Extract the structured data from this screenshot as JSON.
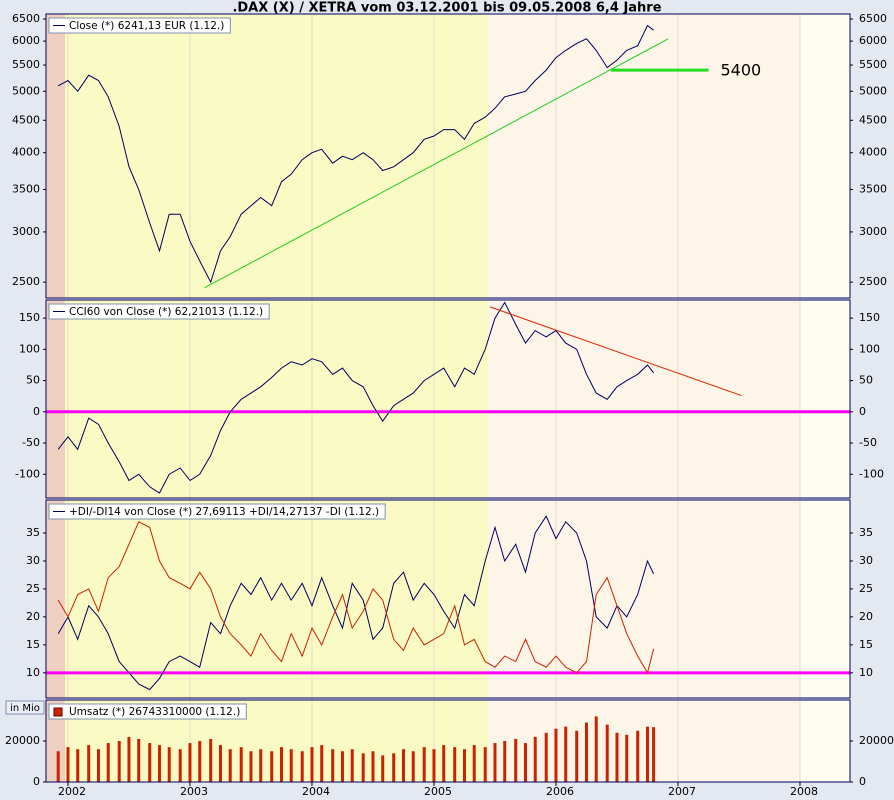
{
  "chart_data": [
    {
      "type": "line",
      "title": ".DAX (X) / XETRA vom 03.12.2001 bis 09.05.2008 6,4 Jahre",
      "legend": "Close (*) 6241,13 EUR (1.12.)",
      "log_scale": true,
      "ylim": [
        2360,
        6620
      ],
      "yticks": [
        2500,
        3000,
        3500,
        4000,
        4500,
        5000,
        5500,
        6000,
        6500
      ],
      "x": [
        2001.92,
        2002.0,
        2002.08,
        2002.17,
        2002.25,
        2002.33,
        2002.42,
        2002.5,
        2002.58,
        2002.67,
        2002.75,
        2002.83,
        2002.92,
        2003.0,
        2003.08,
        2003.17,
        2003.25,
        2003.33,
        2003.42,
        2003.5,
        2003.58,
        2003.67,
        2003.75,
        2003.83,
        2003.92,
        2004.0,
        2004.08,
        2004.17,
        2004.25,
        2004.33,
        2004.42,
        2004.5,
        2004.58,
        2004.67,
        2004.75,
        2004.83,
        2004.92,
        2005.0,
        2005.08,
        2005.17,
        2005.25,
        2005.33,
        2005.42,
        2005.5,
        2005.58,
        2005.67,
        2005.75,
        2005.83,
        2005.92,
        2006.0,
        2006.08,
        2006.17,
        2006.25,
        2006.33,
        2006.42,
        2006.5,
        2006.58,
        2006.67,
        2006.75,
        2006.8
      ],
      "series": [
        {
          "color": "#000060",
          "values": [
            5100,
            5200,
            5000,
            5300,
            5200,
            4900,
            4400,
            3800,
            3500,
            3100,
            2800,
            3200,
            3200,
            2900,
            2700,
            2500,
            2800,
            2950,
            3200,
            3300,
            3400,
            3300,
            3600,
            3700,
            3900,
            4000,
            4050,
            3850,
            3950,
            3900,
            4000,
            3900,
            3750,
            3800,
            3900,
            4000,
            4200,
            4250,
            4350,
            4350,
            4200,
            4450,
            4550,
            4700,
            4900,
            4950,
            5000,
            5200,
            5400,
            5650,
            5800,
            5950,
            6050,
            5800,
            5450,
            5600,
            5800,
            5900,
            6350,
            6241.13
          ]
        }
      ],
      "annotations": [
        {
          "x": [
            2003.12,
            2006.92
          ],
          "values": [
            2450,
            6050
          ],
          "color": "#22cc22"
        },
        {
          "x": [
            2006.45,
            2007.25
          ],
          "values": [
            5400,
            5400
          ],
          "color": "#22dd22",
          "label": "5400"
        }
      ]
    },
    {
      "type": "line",
      "legend": "CCI60 von Close (*) 62,21013 (1.12.)",
      "ylim": [
        -138,
        179
      ],
      "yticks": [
        -100,
        -50,
        0,
        50,
        100,
        150
      ],
      "hlines": [
        {
          "value": 0,
          "color": "#ff00ff"
        }
      ],
      "x": [
        2001.92,
        2002.0,
        2002.08,
        2002.17,
        2002.25,
        2002.33,
        2002.42,
        2002.5,
        2002.58,
        2002.67,
        2002.75,
        2002.83,
        2002.92,
        2003.0,
        2003.08,
        2003.17,
        2003.25,
        2003.33,
        2003.42,
        2003.5,
        2003.58,
        2003.67,
        2003.75,
        2003.83,
        2003.92,
        2004.0,
        2004.08,
        2004.17,
        2004.25,
        2004.33,
        2004.42,
        2004.5,
        2004.58,
        2004.67,
        2004.75,
        2004.83,
        2004.92,
        2005.0,
        2005.08,
        2005.17,
        2005.25,
        2005.33,
        2005.42,
        2005.5,
        2005.58,
        2005.67,
        2005.75,
        2005.83,
        2005.92,
        2006.0,
        2006.08,
        2006.17,
        2006.25,
        2006.33,
        2006.42,
        2006.5,
        2006.58,
        2006.67,
        2006.75,
        2006.8
      ],
      "series": [
        {
          "color": "#000060",
          "values": [
            -60,
            -40,
            -60,
            -10,
            -20,
            -50,
            -80,
            -110,
            -100,
            -120,
            -130,
            -100,
            -90,
            -110,
            -100,
            -70,
            -30,
            0,
            20,
            30,
            40,
            55,
            70,
            80,
            75,
            85,
            80,
            60,
            70,
            50,
            40,
            10,
            -15,
            10,
            20,
            30,
            50,
            60,
            70,
            40,
            70,
            60,
            100,
            150,
            175,
            140,
            110,
            130,
            120,
            130,
            110,
            100,
            60,
            30,
            20,
            40,
            50,
            60,
            75,
            62.21
          ]
        }
      ],
      "annotations": [
        {
          "x": [
            2005.46,
            2007.52
          ],
          "values": [
            168,
            26
          ],
          "color": "#dd2200"
        }
      ]
    },
    {
      "type": "line",
      "legend": "+DI/-DI14 von Close (*) 27,69113 +DI/14,27137 -DI (1.12.)",
      "ylim": [
        5.5,
        40.9
      ],
      "yticks": [
        10,
        15,
        20,
        25,
        30,
        35
      ],
      "hlines": [
        {
          "value": 10,
          "color": "#ff00ff"
        }
      ],
      "x": [
        2001.92,
        2002.0,
        2002.08,
        2002.17,
        2002.25,
        2002.33,
        2002.42,
        2002.5,
        2002.58,
        2002.67,
        2002.75,
        2002.83,
        2002.92,
        2003.0,
        2003.08,
        2003.17,
        2003.25,
        2003.33,
        2003.42,
        2003.5,
        2003.58,
        2003.67,
        2003.75,
        2003.83,
        2003.92,
        2004.0,
        2004.08,
        2004.17,
        2004.25,
        2004.33,
        2004.42,
        2004.5,
        2004.58,
        2004.67,
        2004.75,
        2004.83,
        2004.92,
        2005.0,
        2005.08,
        2005.17,
        2005.25,
        2005.33,
        2005.42,
        2005.5,
        2005.58,
        2005.67,
        2005.75,
        2005.83,
        2005.92,
        2006.0,
        2006.08,
        2006.17,
        2006.25,
        2006.33,
        2006.42,
        2006.5,
        2006.58,
        2006.67,
        2006.75,
        2006.8
      ],
      "series": [
        {
          "color": "#000060",
          "values": [
            17,
            20,
            16,
            22,
            20,
            17,
            12,
            10,
            8,
            7,
            9,
            12,
            13,
            12,
            11,
            19,
            17,
            22,
            26,
            24,
            27,
            23,
            26,
            23,
            26,
            22,
            27,
            22,
            18,
            26,
            23,
            16,
            18,
            26,
            28,
            23,
            26,
            24,
            21,
            18,
            24,
            22,
            30,
            36,
            30,
            33,
            28,
            35,
            38,
            34,
            37,
            35,
            30,
            20,
            18,
            22,
            20,
            24,
            30,
            27.69
          ]
        },
        {
          "color": "#cc2200",
          "values": [
            23,
            20,
            24,
            25,
            21,
            27,
            29,
            33,
            37,
            36,
            30,
            27,
            26,
            25,
            28,
            25,
            20,
            17,
            15,
            13,
            17,
            14,
            12,
            17,
            13,
            18,
            15,
            20,
            24,
            18,
            21,
            25,
            23,
            16,
            14,
            18,
            15,
            16,
            17,
            22,
            15,
            16,
            12,
            11,
            13,
            12,
            16,
            12,
            11,
            13,
            11,
            10,
            12,
            24,
            27,
            22,
            17,
            13,
            10,
            14.27
          ]
        }
      ]
    },
    {
      "type": "bar",
      "legend": "Umsatz (*) 26743310000 (1.12.)",
      "unit_label": "in Mio",
      "ylim": [
        0,
        40000
      ],
      "yticks": [
        0,
        20000
      ],
      "xlim": [
        2001.82,
        2008.41
      ],
      "xticks": [
        2002,
        2003,
        2004,
        2005,
        2006,
        2007,
        2008
      ],
      "x": [
        2001.92,
        2002.0,
        2002.08,
        2002.17,
        2002.25,
        2002.33,
        2002.42,
        2002.5,
        2002.58,
        2002.67,
        2002.75,
        2002.83,
        2002.92,
        2003.0,
        2003.08,
        2003.17,
        2003.25,
        2003.33,
        2003.42,
        2003.5,
        2003.58,
        2003.67,
        2003.75,
        2003.83,
        2003.92,
        2004.0,
        2004.08,
        2004.17,
        2004.25,
        2004.33,
        2004.42,
        2004.5,
        2004.58,
        2004.67,
        2004.75,
        2004.83,
        2004.92,
        2005.0,
        2005.08,
        2005.17,
        2005.25,
        2005.33,
        2005.42,
        2005.5,
        2005.58,
        2005.67,
        2005.75,
        2005.83,
        2005.92,
        2006.0,
        2006.08,
        2006.17,
        2006.25,
        2006.33,
        2006.42,
        2006.5,
        2006.58,
        2006.67,
        2006.75,
        2006.8
      ],
      "series": [
        {
          "color": "#cc2200",
          "values": [
            15000,
            17000,
            16000,
            18000,
            16000,
            19000,
            20000,
            22000,
            21000,
            19000,
            18000,
            17000,
            16000,
            19000,
            20000,
            21000,
            18000,
            16000,
            17000,
            15000,
            16000,
            15000,
            17000,
            16000,
            15000,
            17000,
            18000,
            16000,
            15000,
            16000,
            14000,
            15000,
            13000,
            14000,
            16000,
            15000,
            17000,
            16000,
            18000,
            17000,
            16000,
            18000,
            17000,
            19000,
            20000,
            21000,
            19000,
            22000,
            24000,
            26000,
            27000,
            25000,
            29000,
            32000,
            28000,
            24000,
            23000,
            25000,
            27000,
            26743.31
          ]
        }
      ]
    }
  ]
}
